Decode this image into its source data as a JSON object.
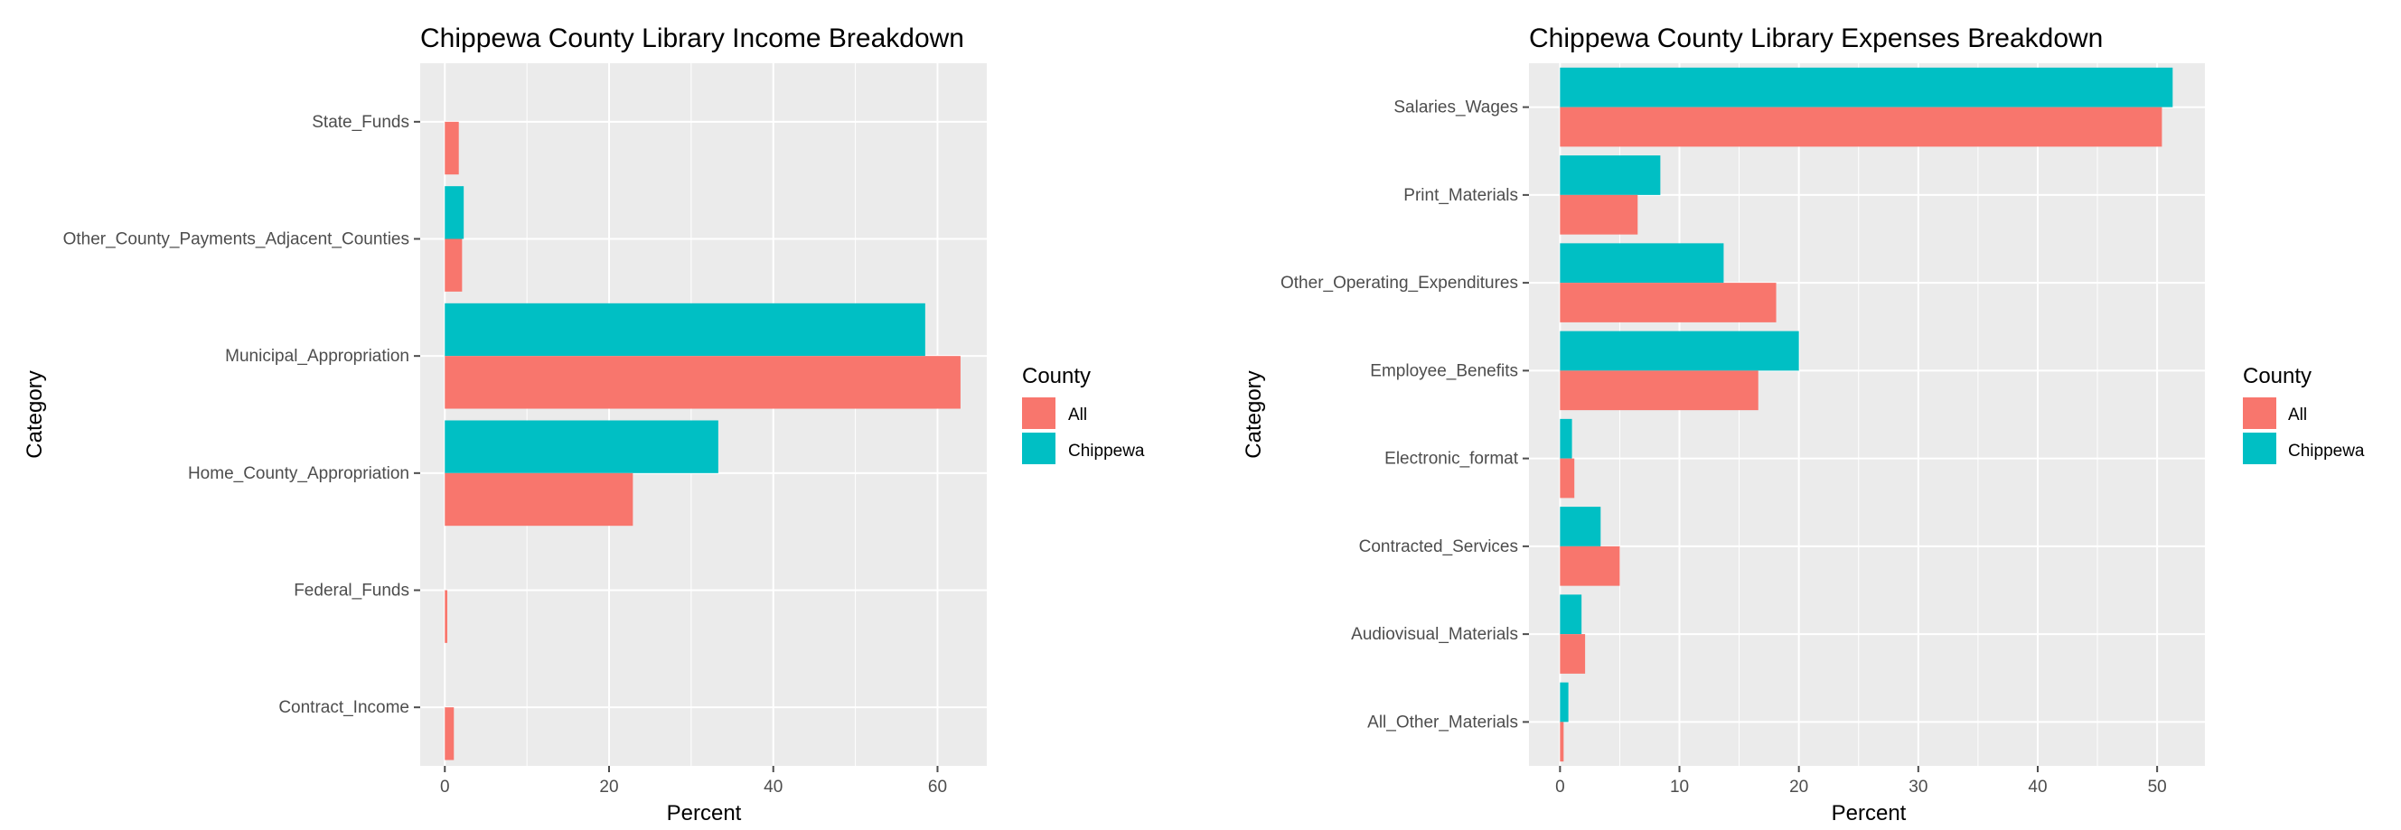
{
  "colors": {
    "All": "#F8766D",
    "Chippewa": "#00BFC4",
    "panel": "#EBEBEB",
    "grid": "#FFFFFF",
    "tick": "#4D4D4D"
  },
  "chart_data": [
    {
      "type": "bar",
      "orientation": "horizontal",
      "title": "Chippewa County Library Income Breakdown",
      "xlabel": "Percent",
      "ylabel": "Category",
      "xlim": [
        -3,
        66
      ],
      "xticks": [
        0,
        20,
        40,
        60
      ],
      "xtick_labels": [
        "0",
        "20",
        "40",
        "60"
      ],
      "categories": [
        "State_Funds",
        "Other_County_Payments_Adjacent_Counties",
        "Municipal_Appropriation",
        "Home_County_Appropriation",
        "Federal_Funds",
        "Contract_Income"
      ],
      "series": [
        {
          "name": "Chippewa",
          "values": [
            0,
            2.3,
            58.5,
            33.3,
            0,
            0
          ]
        },
        {
          "name": "All",
          "values": [
            1.7,
            2.1,
            62.8,
            22.9,
            0.3,
            1.1
          ]
        }
      ],
      "grid": true,
      "legend": {
        "title": "County",
        "position": "right",
        "entries": [
          "All",
          "Chippewa"
        ]
      }
    },
    {
      "type": "bar",
      "orientation": "horizontal",
      "title": "Chippewa County Library Expenses Breakdown",
      "xlabel": "Percent",
      "ylabel": "Category",
      "xlim": [
        -2.6,
        54
      ],
      "xticks": [
        0,
        10,
        20,
        30,
        40,
        50
      ],
      "xtick_labels": [
        "0",
        "10",
        "20",
        "30",
        "40",
        "50"
      ],
      "categories": [
        "Salaries_Wages",
        "Print_Materials",
        "Other_Operating_Expenditures",
        "Employee_Benefits",
        "Electronic_format",
        "Contracted_Services",
        "Audiovisual_Materials",
        "All_Other_Materials"
      ],
      "series": [
        {
          "name": "Chippewa",
          "values": [
            51.3,
            8.4,
            13.7,
            20.0,
            1.0,
            3.4,
            1.8,
            0.7
          ]
        },
        {
          "name": "All",
          "values": [
            50.4,
            6.5,
            18.1,
            16.6,
            1.2,
            5.0,
            2.1,
            0.3
          ]
        }
      ],
      "grid": true,
      "legend": {
        "title": "County",
        "position": "right",
        "entries": [
          "All",
          "Chippewa"
        ]
      }
    }
  ]
}
